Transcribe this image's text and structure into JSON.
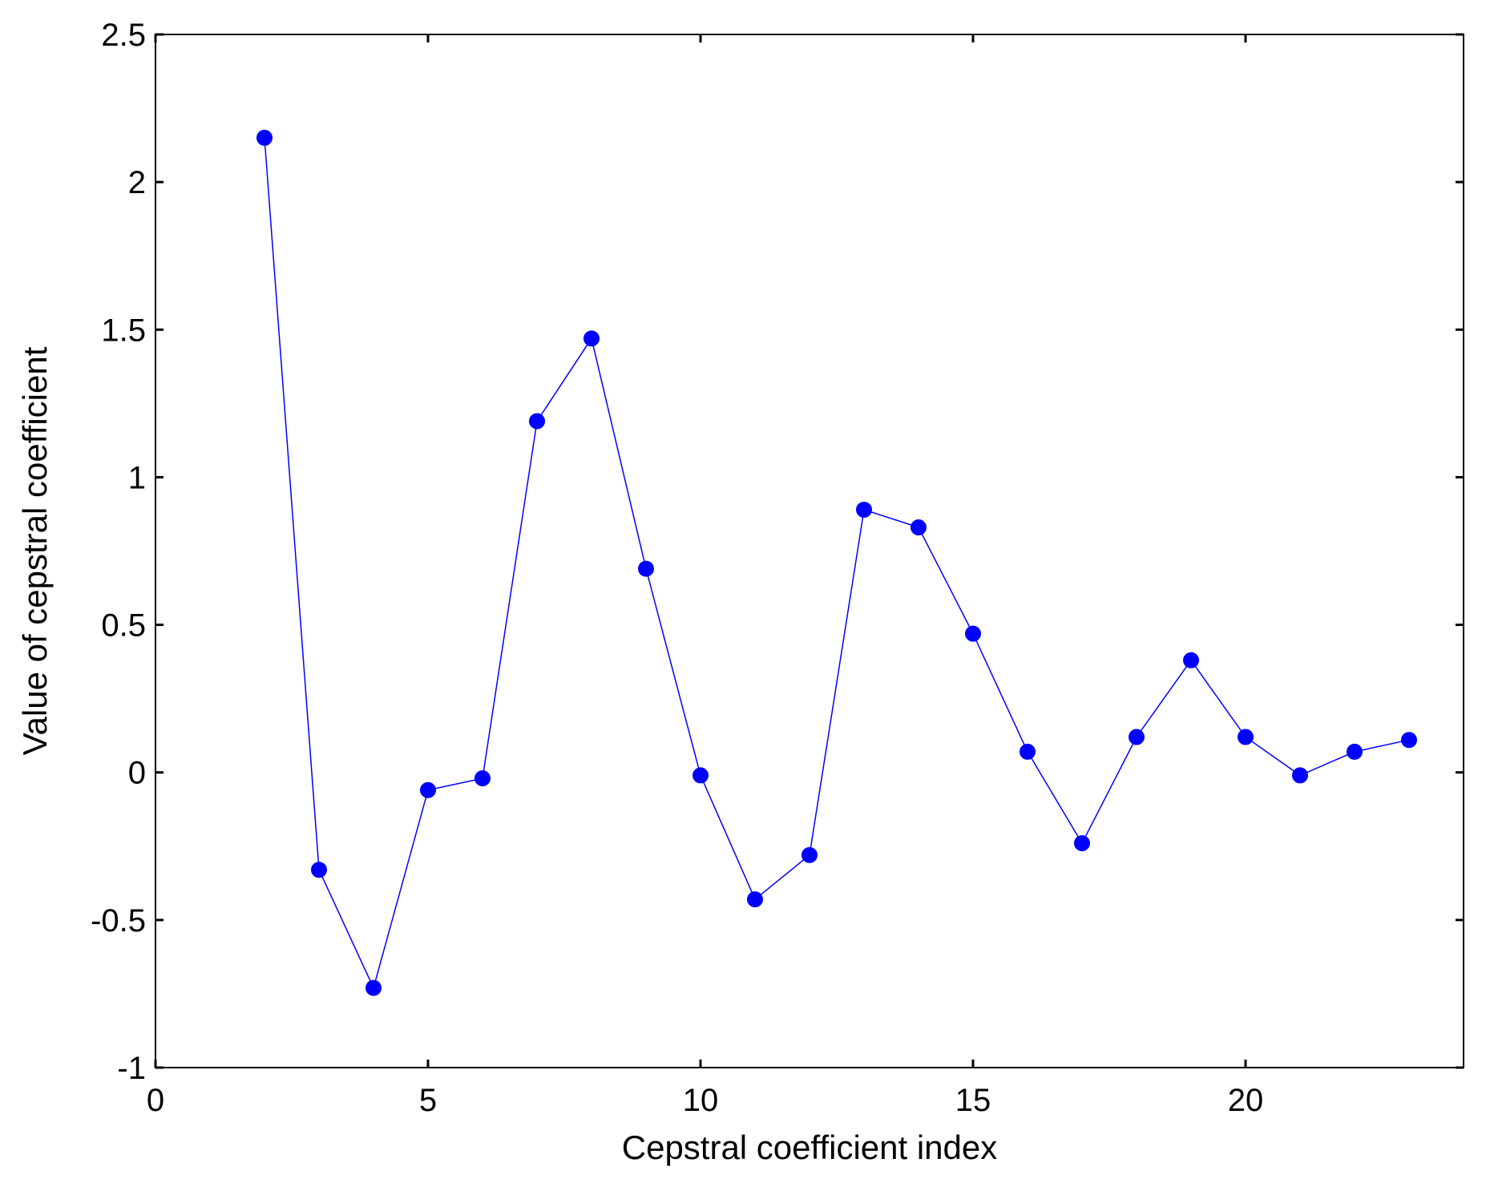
{
  "chart_data": {
    "type": "line",
    "title": "",
    "xlabel": "Cepstral coefficient index",
    "ylabel": "Value of cepstral coefficient",
    "xlim": [
      0,
      24
    ],
    "ylim": [
      -1,
      2.5
    ],
    "xticks": [
      0,
      5,
      10,
      15,
      20
    ],
    "xtick_labels": [
      "0",
      "5",
      "10",
      "15",
      "20"
    ],
    "yticks": [
      -1,
      -0.5,
      0,
      0.5,
      1,
      1.5,
      2,
      2.5
    ],
    "ytick_labels": [
      "-1",
      "-0.5",
      "0",
      "0.5",
      "1",
      "1.5",
      "2",
      "2.5"
    ],
    "grid": false,
    "legend": "none",
    "series": [
      {
        "color": "#0000ff",
        "marker": "filled-circle",
        "x": [
          2,
          3,
          4,
          5,
          6,
          7,
          8,
          9,
          10,
          11,
          12,
          13,
          14,
          15,
          16,
          17,
          18,
          19,
          20,
          21,
          22,
          23
        ],
        "y": [
          2.15,
          -0.33,
          -0.73,
          -0.06,
          -0.02,
          1.19,
          1.47,
          0.69,
          -0.01,
          -0.43,
          -0.28,
          0.89,
          0.83,
          0.47,
          0.07,
          -0.24,
          0.12,
          0.38,
          0.12,
          -0.01,
          0.07,
          0.11
        ]
      }
    ]
  }
}
